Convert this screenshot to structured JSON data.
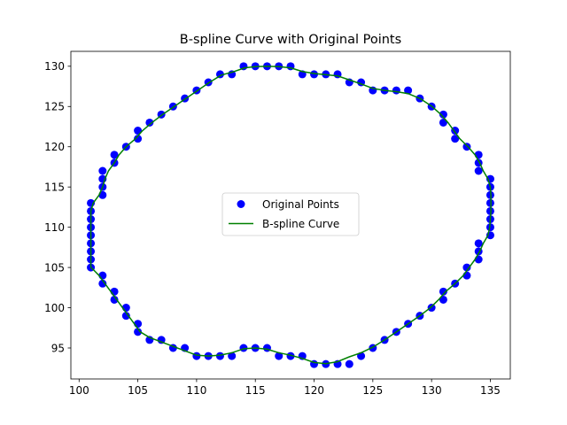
{
  "chart_data": {
    "type": "scatter",
    "title": "B-spline Curve with Original Points",
    "xlabel": "",
    "ylabel": "",
    "xlim": [
      99.3,
      136.7
    ],
    "ylim": [
      91.15,
      131.85
    ],
    "xticks": [
      100,
      105,
      110,
      115,
      120,
      125,
      130,
      135
    ],
    "yticks": [
      95,
      100,
      105,
      110,
      115,
      120,
      125,
      130
    ],
    "grid": false,
    "legend_position": "center",
    "series": [
      {
        "name": "Original Points",
        "kind": "points",
        "color": "#0000ff",
        "points": [
          [
            101,
            105
          ],
          [
            101,
            106
          ],
          [
            101,
            107
          ],
          [
            101,
            108
          ],
          [
            101,
            109
          ],
          [
            101,
            110
          ],
          [
            101,
            111
          ],
          [
            101,
            112
          ],
          [
            101,
            113
          ],
          [
            102,
            114
          ],
          [
            102,
            115
          ],
          [
            102,
            116
          ],
          [
            102,
            117
          ],
          [
            103,
            118
          ],
          [
            103,
            119
          ],
          [
            104,
            120
          ],
          [
            105,
            121
          ],
          [
            105,
            122
          ],
          [
            106,
            123
          ],
          [
            107,
            124
          ],
          [
            108,
            125
          ],
          [
            109,
            126
          ],
          [
            110,
            127
          ],
          [
            111,
            128
          ],
          [
            112,
            129
          ],
          [
            113,
            129
          ],
          [
            114,
            130
          ],
          [
            115,
            130
          ],
          [
            116,
            130
          ],
          [
            117,
            130
          ],
          [
            118,
            130
          ],
          [
            119,
            129
          ],
          [
            120,
            129
          ],
          [
            121,
            129
          ],
          [
            122,
            129
          ],
          [
            123,
            128
          ],
          [
            124,
            128
          ],
          [
            125,
            127
          ],
          [
            126,
            127
          ],
          [
            127,
            127
          ],
          [
            128,
            127
          ],
          [
            129,
            126
          ],
          [
            130,
            125
          ],
          [
            131,
            124
          ],
          [
            131,
            123
          ],
          [
            132,
            122
          ],
          [
            132,
            121
          ],
          [
            133,
            120
          ],
          [
            134,
            119
          ],
          [
            134,
            118
          ],
          [
            134,
            117
          ],
          [
            135,
            116
          ],
          [
            135,
            115
          ],
          [
            135,
            114
          ],
          [
            135,
            113
          ],
          [
            135,
            112
          ],
          [
            135,
            111
          ],
          [
            135,
            110
          ],
          [
            135,
            109
          ],
          [
            134,
            108
          ],
          [
            134,
            107
          ],
          [
            134,
            106
          ],
          [
            133,
            105
          ],
          [
            133,
            104
          ],
          [
            132,
            103
          ],
          [
            131,
            102
          ],
          [
            131,
            101
          ],
          [
            130,
            100
          ],
          [
            129,
            99
          ],
          [
            128,
            98
          ],
          [
            127,
            97
          ],
          [
            126,
            96
          ],
          [
            125,
            95
          ],
          [
            124,
            94
          ],
          [
            123,
            93
          ],
          [
            122,
            93
          ],
          [
            121,
            93
          ],
          [
            120,
            93
          ],
          [
            119,
            94
          ],
          [
            118,
            94
          ],
          [
            117,
            94
          ],
          [
            116,
            95
          ],
          [
            115,
            95
          ],
          [
            114,
            95
          ],
          [
            113,
            94
          ],
          [
            112,
            94
          ],
          [
            111,
            94
          ],
          [
            110,
            94
          ],
          [
            109,
            95
          ],
          [
            108,
            95
          ],
          [
            107,
            96
          ],
          [
            106,
            96
          ],
          [
            105,
            97
          ],
          [
            105,
            98
          ],
          [
            104,
            99
          ],
          [
            104,
            100
          ],
          [
            103,
            101
          ],
          [
            103,
            102
          ],
          [
            102,
            103
          ],
          [
            102,
            104
          ]
        ]
      },
      {
        "name": "B-spline Curve",
        "kind": "line",
        "color": "#008000",
        "points": [
          [
            101,
            105
          ],
          [
            101,
            106
          ],
          [
            101,
            107
          ],
          [
            101,
            108
          ],
          [
            101,
            109
          ],
          [
            101,
            110
          ],
          [
            101,
            111
          ],
          [
            101,
            112
          ],
          [
            101.2,
            113
          ],
          [
            101.7,
            114
          ],
          [
            102,
            115
          ],
          [
            102.2,
            116
          ],
          [
            102.5,
            117
          ],
          [
            103,
            118
          ],
          [
            103.4,
            119
          ],
          [
            104,
            120
          ],
          [
            104.8,
            121
          ],
          [
            105.4,
            122
          ],
          [
            106.2,
            123
          ],
          [
            107.1,
            124
          ],
          [
            108.1,
            125
          ],
          [
            109.1,
            126
          ],
          [
            110.1,
            127
          ],
          [
            111.1,
            128
          ],
          [
            112.1,
            128.9
          ],
          [
            113.1,
            129.3
          ],
          [
            114.1,
            129.8
          ],
          [
            115,
            129.95
          ],
          [
            116,
            130
          ],
          [
            117,
            129.95
          ],
          [
            118,
            129.8
          ],
          [
            119,
            129.35
          ],
          [
            120,
            129.1
          ],
          [
            121,
            128.95
          ],
          [
            122,
            128.8
          ],
          [
            123,
            128.3
          ],
          [
            124,
            127.8
          ],
          [
            125,
            127.25
          ],
          [
            126,
            127
          ],
          [
            127,
            126.85
          ],
          [
            128,
            126.6
          ],
          [
            129,
            126
          ],
          [
            130,
            125.05
          ],
          [
            130.8,
            124
          ],
          [
            131.4,
            123
          ],
          [
            131.9,
            122
          ],
          [
            132.4,
            121
          ],
          [
            133.1,
            120
          ],
          [
            133.7,
            119
          ],
          [
            134.1,
            118
          ],
          [
            134.4,
            117
          ],
          [
            134.8,
            116
          ],
          [
            135,
            115
          ],
          [
            135.05,
            114
          ],
          [
            135.05,
            113
          ],
          [
            135.05,
            112
          ],
          [
            135,
            111
          ],
          [
            134.95,
            110
          ],
          [
            134.8,
            109
          ],
          [
            134.4,
            108
          ],
          [
            134.1,
            107
          ],
          [
            133.7,
            106
          ],
          [
            133.2,
            105
          ],
          [
            132.7,
            104
          ],
          [
            132,
            103
          ],
          [
            131.2,
            102
          ],
          [
            130.6,
            101
          ],
          [
            129.9,
            100
          ],
          [
            129,
            99
          ],
          [
            128,
            98
          ],
          [
            127,
            97
          ],
          [
            126,
            96
          ],
          [
            125,
            95.1
          ],
          [
            124,
            94.4
          ],
          [
            123,
            93.9
          ],
          [
            122,
            93.3
          ],
          [
            121,
            93.05
          ],
          [
            120,
            93.2
          ],
          [
            119,
            93.7
          ],
          [
            118,
            94.1
          ],
          [
            117,
            94.4
          ],
          [
            116,
            94.85
          ],
          [
            115,
            95
          ],
          [
            114,
            94.9
          ],
          [
            113,
            94.4
          ],
          [
            112,
            94.1
          ],
          [
            111,
            94
          ],
          [
            110,
            94.1
          ],
          [
            109,
            94.65
          ],
          [
            108,
            95.2
          ],
          [
            107,
            95.75
          ],
          [
            106,
            96.3
          ],
          [
            105.2,
            97
          ],
          [
            104.7,
            98
          ],
          [
            104.2,
            99
          ],
          [
            103.7,
            100
          ],
          [
            103.2,
            101
          ],
          [
            102.7,
            102
          ],
          [
            102.2,
            103
          ],
          [
            101.7,
            104
          ],
          [
            101.3,
            104.6
          ],
          [
            101,
            105
          ]
        ]
      }
    ]
  }
}
